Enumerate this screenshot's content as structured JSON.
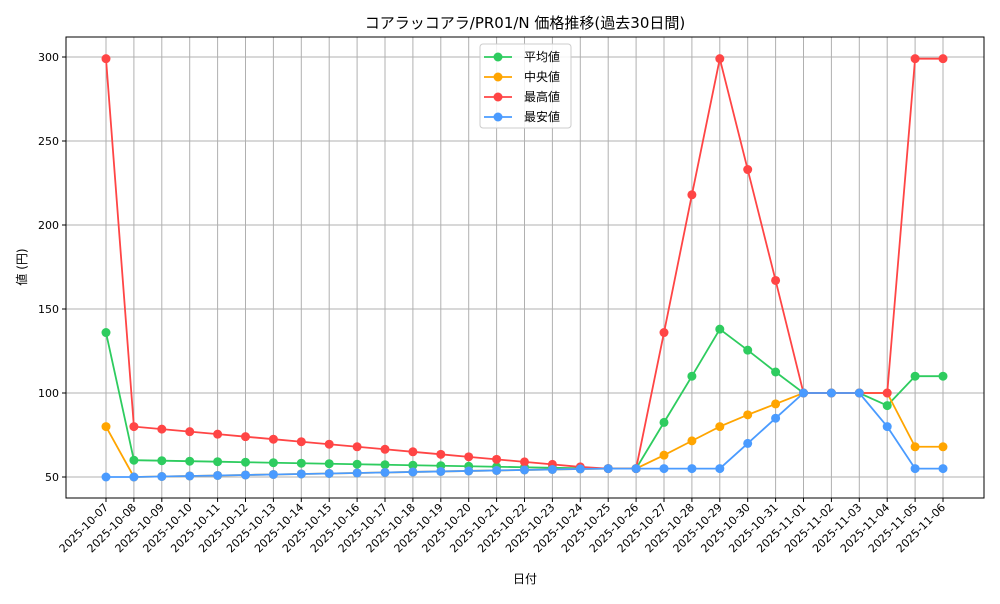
{
  "chart_data": {
    "type": "line",
    "title": "コアラッコアラ/PR01/N 価格推移(過去30日間)",
    "xlabel": "日付",
    "ylabel": "値 (円)",
    "ylim": [
      37.5,
      311
    ],
    "yticks": [
      50,
      100,
      150,
      200,
      250,
      300
    ],
    "grid": true,
    "legend_position": "top-center",
    "x": [
      "2025-10-07",
      "2025-10-08",
      "2025-10-09",
      "2025-10-10",
      "2025-10-11",
      "2025-10-12",
      "2025-10-13",
      "2025-10-14",
      "2025-10-15",
      "2025-10-16",
      "2025-10-17",
      "2025-10-18",
      "2025-10-19",
      "2025-10-20",
      "2025-10-21",
      "2025-10-22",
      "2025-10-23",
      "2025-10-24",
      "2025-10-25",
      "2025-10-26",
      "2025-10-27",
      "2025-10-28",
      "2025-10-29",
      "2025-10-30",
      "2025-10-31",
      "2025-11-01",
      "2025-11-02",
      "2025-11-03",
      "2025-11-04",
      "2025-11-05",
      "2025-11-06"
    ],
    "series": [
      {
        "name": "平均値",
        "color": "#2ecc5f",
        "values": [
          136,
          60,
          59.7,
          59.4,
          59.1,
          58.8,
          58.5,
          58.2,
          57.9,
          57.6,
          57.3,
          57,
          56.7,
          56.4,
          56.1,
          55.8,
          55.5,
          55.2,
          55,
          55,
          82.5,
          110,
          138,
          125.5,
          112.5,
          100,
          100,
          100,
          92.5,
          110,
          110
        ]
      },
      {
        "name": "中央値",
        "color": "#ffa500",
        "values": [
          80,
          50,
          50.3,
          50.6,
          50.9,
          51.2,
          51.5,
          51.8,
          52.1,
          52.4,
          52.7,
          53,
          53.3,
          53.6,
          53.9,
          54.2,
          54.5,
          54.8,
          55,
          55,
          63,
          71.5,
          80,
          87,
          93.5,
          100,
          100,
          100,
          100,
          68,
          68
        ]
      },
      {
        "name": "最高値",
        "color": "#ff4545",
        "values": [
          299,
          80,
          78.5,
          77,
          75.5,
          74,
          72.5,
          71,
          69.5,
          68,
          66.5,
          65,
          63.5,
          62,
          60.5,
          59,
          57.5,
          56,
          55,
          55,
          136,
          218,
          299,
          233,
          167,
          100,
          100,
          100,
          100,
          299,
          299
        ]
      },
      {
        "name": "最安値",
        "color": "#4a9bff",
        "values": [
          50,
          50,
          50.3,
          50.6,
          50.9,
          51.2,
          51.5,
          51.8,
          52.1,
          52.4,
          52.7,
          53,
          53.3,
          53.6,
          53.9,
          54.2,
          54.5,
          54.8,
          55,
          55,
          55,
          55,
          55,
          70,
          85,
          100,
          100,
          100,
          80,
          55,
          55
        ]
      }
    ]
  }
}
